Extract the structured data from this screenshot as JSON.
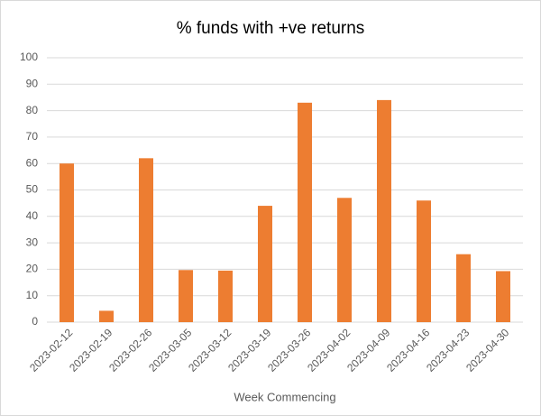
{
  "chart_data": {
    "type": "bar",
    "title": "% funds with +ve returns",
    "x_label": "Week Commencing",
    "categories": [
      "2023-02-12",
      "2023-02-19",
      "2023-02-26",
      "2023-03-05",
      "2023-03-12",
      "2023-03-19",
      "2023-03-26",
      "2023-04-02",
      "2023-04-09",
      "2023-04-16",
      "2023-04-23",
      "2023-04-30"
    ],
    "values": [
      60,
      4.3,
      62,
      19.7,
      19.5,
      44,
      83,
      47,
      84,
      46,
      25.7,
      19.3
    ],
    "color": "#ed7d31",
    "ylim": [
      0,
      100
    ],
    "yticks": [
      0,
      10,
      20,
      30,
      40,
      50,
      60,
      70,
      80,
      90,
      100
    ],
    "grid": true
  }
}
